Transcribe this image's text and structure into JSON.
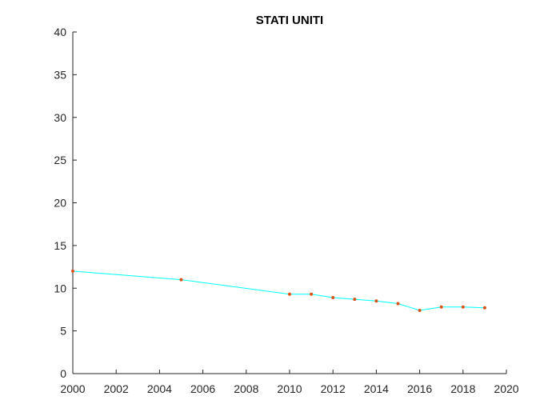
{
  "chart_data": {
    "type": "line",
    "title": "STATI UNITI",
    "xlabel": "",
    "ylabel": "",
    "xlim": [
      2000,
      2020
    ],
    "ylim": [
      0,
      40
    ],
    "xticks": [
      2000,
      2002,
      2004,
      2006,
      2008,
      2010,
      2012,
      2014,
      2016,
      2018,
      2020
    ],
    "yticks": [
      0,
      5,
      10,
      15,
      20,
      25,
      30,
      35,
      40
    ],
    "grid": false,
    "series": [
      {
        "x": [
          2000,
          2005,
          2010,
          2011,
          2012,
          2013,
          2014,
          2015,
          2016,
          2017,
          2018,
          2019
        ],
        "y": [
          12.0,
          11.0,
          9.3,
          9.3,
          8.9,
          8.7,
          8.5,
          8.2,
          7.4,
          7.8,
          7.8,
          7.7
        ],
        "line_color": "#00ffff",
        "marker_color": "#d95319"
      }
    ]
  }
}
